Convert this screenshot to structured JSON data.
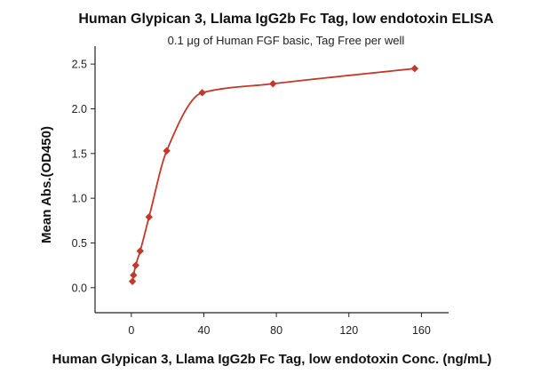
{
  "chart_data": {
    "type": "scatter",
    "title": "Human Glypican 3, Llama IgG2b Fc Tag, low endotoxin ELISA",
    "subtitle": "0.1 μg of Human FGF basic, Tag Free per well",
    "xlabel": "Human Glypican 3, Llama IgG2b Fc Tag, low endotoxin Conc. (ng/mL)",
    "ylabel": "Mean Abs.(OD450)",
    "xlim": [
      -20,
      175
    ],
    "ylim": [
      -0.28,
      2.7
    ],
    "xticks": [
      0,
      40,
      80,
      120,
      160
    ],
    "yticks": [
      0.0,
      0.5,
      1.0,
      1.5,
      2.0,
      2.5
    ],
    "xtick_labels": [
      "0",
      "40",
      "80",
      "120",
      "160"
    ],
    "ytick_labels": [
      "0.0",
      "0.5",
      "1.0",
      "1.5",
      "2.0",
      "2.5"
    ],
    "grid": false,
    "color": "#c0392b",
    "points": {
      "x": [
        0.61,
        1.22,
        2.44,
        4.88,
        9.77,
        19.5,
        39.1,
        78.1,
        156.3
      ],
      "y": [
        0.07,
        0.14,
        0.25,
        0.41,
        0.79,
        1.53,
        2.18,
        2.28,
        2.45
      ]
    }
  }
}
